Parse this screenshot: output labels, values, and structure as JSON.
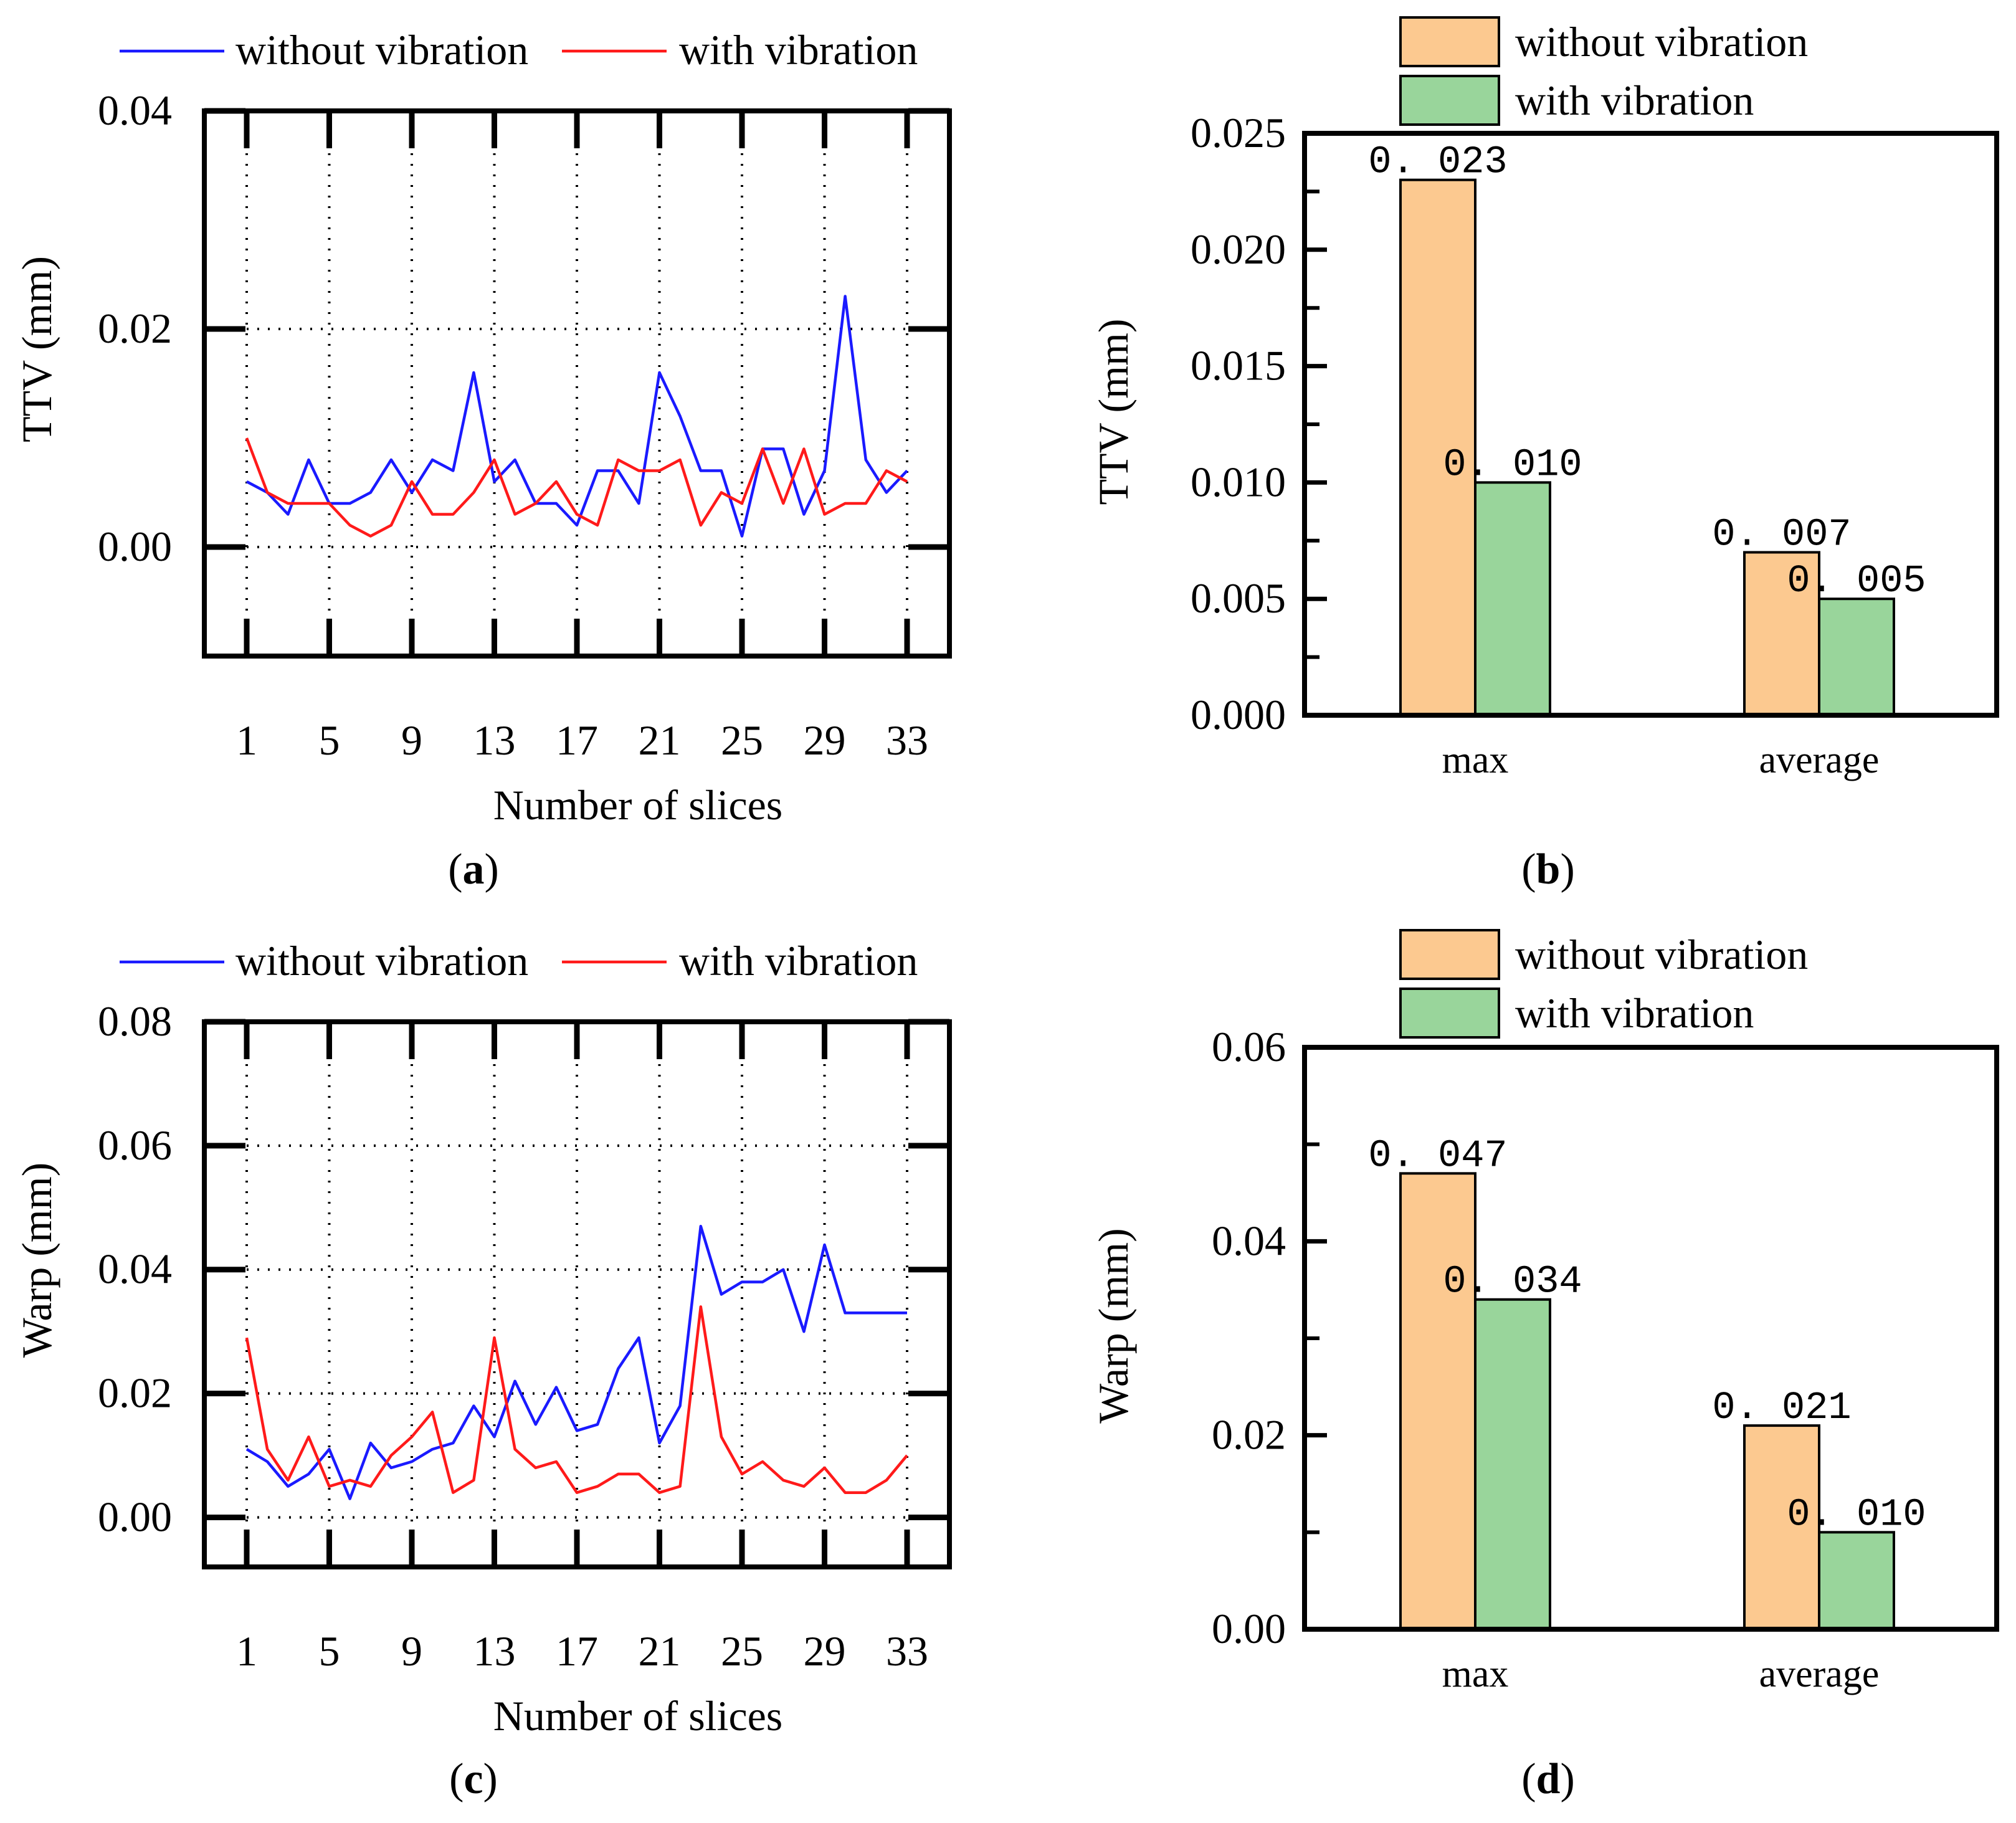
{
  "figure": {
    "panels": [
      {
        "id": "a",
        "caption": "a"
      },
      {
        "id": "b",
        "caption": "b"
      },
      {
        "id": "c",
        "caption": "c"
      },
      {
        "id": "d",
        "caption": "d"
      }
    ]
  },
  "colors": {
    "without_line": "#1a1aff",
    "with_line": "#ff1a1a",
    "without_bar": "#fcc990",
    "with_bar": "#99d59b"
  },
  "chart_data": [
    {
      "id": "a",
      "type": "line",
      "xlabel": "Number of slices",
      "ylabel": "TTV (mm)",
      "ylim": [
        -0.01,
        0.04
      ],
      "xlim": [
        1,
        33
      ],
      "yticks": [
        0.0,
        0.02,
        0.04
      ],
      "ytick_labels": [
        "0.00",
        "0.02",
        "0.04"
      ],
      "xticks": [
        1,
        5,
        9,
        13,
        17,
        21,
        25,
        29,
        33
      ],
      "xtick_labels": [
        "1",
        "5",
        "9",
        "13",
        "17",
        "21",
        "25",
        "29",
        "33"
      ],
      "grid": true,
      "legend": "top",
      "x": [
        1,
        2,
        3,
        4,
        5,
        6,
        7,
        8,
        9,
        10,
        11,
        12,
        13,
        14,
        15,
        16,
        17,
        18,
        19,
        20,
        21,
        22,
        23,
        24,
        25,
        26,
        27,
        28,
        29,
        30,
        31,
        32,
        33
      ],
      "series": [
        {
          "name": "without vibration",
          "color_key": "without_line",
          "values": [
            0.006,
            0.005,
            0.003,
            0.008,
            0.004,
            0.004,
            0.005,
            0.008,
            0.005,
            0.008,
            0.007,
            0.016,
            0.006,
            0.008,
            0.004,
            0.004,
            0.002,
            0.007,
            0.007,
            0.004,
            0.016,
            0.012,
            0.007,
            0.007,
            0.001,
            0.009,
            0.009,
            0.003,
            0.007,
            0.023,
            0.008,
            0.005,
            0.007
          ]
        },
        {
          "name": "with vibration",
          "color_key": "with_line",
          "values": [
            0.01,
            0.005,
            0.004,
            0.004,
            0.004,
            0.002,
            0.001,
            0.002,
            0.006,
            0.003,
            0.003,
            0.005,
            0.008,
            0.003,
            0.004,
            0.006,
            0.003,
            0.002,
            0.008,
            0.007,
            0.007,
            0.008,
            0.002,
            0.005,
            0.004,
            0.009,
            0.004,
            0.009,
            0.003,
            0.004,
            0.004,
            0.007,
            0.006
          ]
        }
      ]
    },
    {
      "id": "b",
      "type": "bar",
      "ylabel": "TTV (mm)",
      "ylim": [
        0,
        0.025
      ],
      "yticks": [
        0.0,
        0.005,
        0.01,
        0.015,
        0.02,
        0.025
      ],
      "ytick_labels": [
        "0.000",
        "0.005",
        "0.010",
        "0.015",
        "0.020",
        "0.025"
      ],
      "categories": [
        "max",
        "average"
      ],
      "legend": "top",
      "series": [
        {
          "name": "without vibration",
          "color_key": "without_bar",
          "values": [
            0.023,
            0.007
          ],
          "labels": [
            "0. 023",
            "0. 007"
          ]
        },
        {
          "name": "with vibration",
          "color_key": "with_bar",
          "values": [
            0.01,
            0.005
          ],
          "labels": [
            "0. 010",
            "0. 005"
          ]
        }
      ]
    },
    {
      "id": "c",
      "type": "line",
      "xlabel": "Number of slices",
      "ylabel": "Warp (mm)",
      "ylim": [
        -0.008,
        0.08
      ],
      "xlim": [
        1,
        33
      ],
      "yticks": [
        0.0,
        0.02,
        0.04,
        0.06,
        0.08
      ],
      "ytick_labels": [
        "0.00",
        "0.02",
        "0.04",
        "0.06",
        "0.08"
      ],
      "xticks": [
        1,
        5,
        9,
        13,
        17,
        21,
        25,
        29,
        33
      ],
      "xtick_labels": [
        "1",
        "5",
        "9",
        "13",
        "17",
        "21",
        "25",
        "29",
        "33"
      ],
      "grid": true,
      "legend": "top",
      "x": [
        1,
        2,
        3,
        4,
        5,
        6,
        7,
        8,
        9,
        10,
        11,
        12,
        13,
        14,
        15,
        16,
        17,
        18,
        19,
        20,
        21,
        22,
        23,
        24,
        25,
        26,
        27,
        28,
        29,
        30,
        31,
        32,
        33
      ],
      "series": [
        {
          "name": "without vibration",
          "color_key": "without_line",
          "values": [
            0.011,
            0.009,
            0.005,
            0.007,
            0.011,
            0.003,
            0.012,
            0.008,
            0.009,
            0.011,
            0.012,
            0.018,
            0.013,
            0.022,
            0.015,
            0.021,
            0.014,
            0.015,
            0.024,
            0.029,
            0.012,
            0.018,
            0.047,
            0.036,
            0.038,
            0.038,
            0.04,
            0.03,
            0.044,
            0.033,
            0.033,
            0.033,
            0.033
          ]
        },
        {
          "name": "with vibration",
          "color_key": "with_line",
          "values": [
            0.029,
            0.011,
            0.006,
            0.013,
            0.005,
            0.006,
            0.005,
            0.01,
            0.013,
            0.017,
            0.004,
            0.006,
            0.029,
            0.011,
            0.008,
            0.009,
            0.004,
            0.005,
            0.007,
            0.007,
            0.004,
            0.005,
            0.034,
            0.013,
            0.007,
            0.009,
            0.006,
            0.005,
            0.008,
            0.004,
            0.004,
            0.006,
            0.01
          ]
        }
      ]
    },
    {
      "id": "d",
      "type": "bar",
      "ylabel": "Warp (mm)",
      "ylim": [
        0,
        0.06
      ],
      "yticks": [
        0.0,
        0.02,
        0.04,
        0.06
      ],
      "ytick_labels": [
        "0.00",
        "0.02",
        "0.04",
        "0.06"
      ],
      "categories": [
        "max",
        "average"
      ],
      "legend": "top",
      "series": [
        {
          "name": "without vibration",
          "color_key": "without_bar",
          "values": [
            0.047,
            0.021
          ],
          "labels": [
            "0. 047",
            "0. 021"
          ]
        },
        {
          "name": "with vibration",
          "color_key": "with_bar",
          "values": [
            0.034,
            0.01
          ],
          "labels": [
            "0. 034",
            "0. 010"
          ]
        }
      ]
    }
  ]
}
